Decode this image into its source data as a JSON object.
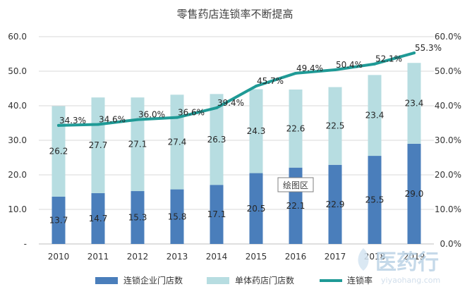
{
  "chart_data": {
    "type": "bar",
    "title": "零售药店连锁率不断提高",
    "categories": [
      "2010",
      "2011",
      "2012",
      "2013",
      "2014",
      "2015",
      "2016",
      "2017",
      "2018",
      "2019"
    ],
    "series": [
      {
        "name": "连锁企业门店数",
        "kind": "stacked-bar",
        "axis": "left",
        "color": "#4a7ebb",
        "values": [
          13.7,
          14.7,
          15.3,
          15.8,
          17.1,
          20.5,
          22.1,
          22.9,
          25.5,
          29.0
        ],
        "labels": [
          "13.7",
          "14.7",
          "15.3",
          "15.8",
          "17.1",
          "20.5",
          "22.1",
          "22.9",
          "25.5",
          "29.0"
        ]
      },
      {
        "name": "单体药店门店数",
        "kind": "stacked-bar",
        "axis": "left",
        "color": "#b7dde1",
        "values": [
          26.2,
          27.7,
          27.1,
          27.4,
          26.3,
          24.3,
          22.6,
          22.5,
          23.4,
          23.4
        ],
        "labels": [
          "26.2",
          "27.7",
          "27.1",
          "27.4",
          "26.3",
          "24.3",
          "22.6",
          "22.5",
          "23.4",
          "23.4"
        ]
      },
      {
        "name": "连锁率",
        "kind": "line",
        "axis": "right",
        "color": "#1f9a96",
        "values": [
          34.3,
          34.6,
          36.0,
          36.6,
          39.4,
          45.7,
          49.4,
          50.4,
          52.1,
          55.3
        ],
        "labels": [
          "34.3%",
          "34.6%",
          "36.0%",
          "36.6%",
          "39.4%",
          "45.7%",
          "49.4%",
          "50.4%",
          "52.1%",
          "55.3%"
        ]
      }
    ],
    "y_left": {
      "min": 0,
      "max": 60,
      "ticks": [
        "-",
        "10.0",
        "20.0",
        "30.0",
        "40.0",
        "50.0",
        "60.0"
      ]
    },
    "y_right": {
      "min": 0,
      "max": 60,
      "ticks": [
        "0.0%",
        "10.0%",
        "20.0%",
        "30.0%",
        "40.0%",
        "50.0%",
        "60.0%"
      ]
    },
    "grid": true,
    "legend": "bottom"
  },
  "tooltip": "绘图区",
  "watermark": {
    "text": "医药行",
    "url": "yiyaohang.com"
  }
}
